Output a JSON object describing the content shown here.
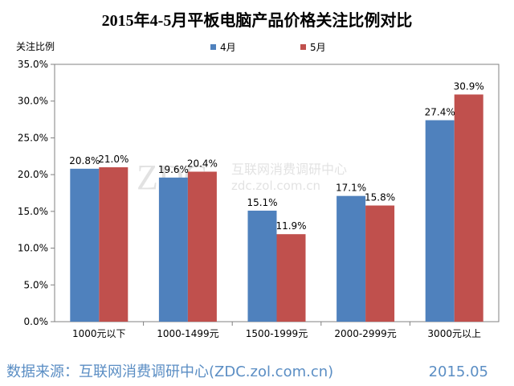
{
  "chart_data": {
    "type": "bar",
    "title": "2015年4-5月平板电脑产品价格关注比例对比",
    "ylabel": "关注比例",
    "xlabel": "",
    "categories": [
      "1000元以下",
      "1000-1499元",
      "1500-1999元",
      "2000-2999元",
      "3000元以上"
    ],
    "series": [
      {
        "name": "4月",
        "color": "#4f81bd",
        "values": [
          20.8,
          19.6,
          15.1,
          17.1,
          27.4
        ]
      },
      {
        "name": "5月",
        "color": "#c0504d",
        "values": [
          21.0,
          20.4,
          11.9,
          15.8,
          30.9
        ]
      }
    ],
    "ylim": [
      0,
      35
    ],
    "yticks": [
      0,
      5,
      10,
      15,
      20,
      25,
      30,
      35
    ],
    "value_suffix": "%",
    "legend_position": "top-center",
    "grid": false
  },
  "watermark": {
    "logo": "ZDC",
    "line1": "互联网消费调研中心",
    "line2": "zdc.zol.com.cn"
  },
  "footer": {
    "source": "数据来源：互联网消费调研中心(ZDC.zol.com.cn)",
    "date": "2015.05"
  }
}
